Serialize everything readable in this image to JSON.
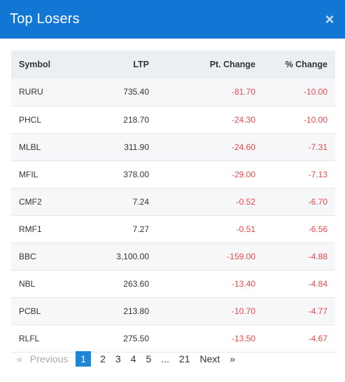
{
  "modal": {
    "title": "Top Losers",
    "close_glyph": "×"
  },
  "table": {
    "headers": [
      "Symbol",
      "LTP",
      "Pt. Change",
      "% Change"
    ],
    "rows": [
      {
        "symbol": "RURU",
        "ltp": "735.40",
        "pt_change": "-81.70",
        "pct_change": "-10.00"
      },
      {
        "symbol": "PHCL",
        "ltp": "218.70",
        "pt_change": "-24.30",
        "pct_change": "-10.00"
      },
      {
        "symbol": "MLBL",
        "ltp": "311.90",
        "pt_change": "-24.60",
        "pct_change": "-7.31"
      },
      {
        "symbol": "MFIL",
        "ltp": "378.00",
        "pt_change": "-29.00",
        "pct_change": "-7.13"
      },
      {
        "symbol": "CMF2",
        "ltp": "7.24",
        "pt_change": "-0.52",
        "pct_change": "-6.70"
      },
      {
        "symbol": "RMF1",
        "ltp": "7.27",
        "pt_change": "-0.51",
        "pct_change": "-6.56"
      },
      {
        "symbol": "BBC",
        "ltp": "3,100.00",
        "pt_change": "-159.00",
        "pct_change": "-4.88"
      },
      {
        "symbol": "NBL",
        "ltp": "263.60",
        "pt_change": "-13.40",
        "pct_change": "-4.84"
      },
      {
        "symbol": "PCBL",
        "ltp": "213.80",
        "pt_change": "-10.70",
        "pct_change": "-4.77"
      },
      {
        "symbol": "RLFL",
        "ltp": "275.50",
        "pt_change": "-13.50",
        "pct_change": "-4.67"
      }
    ]
  },
  "pagination": {
    "prev_arrow": "«",
    "previous_label": "Previous",
    "pages": [
      "1",
      "2",
      "3",
      "4",
      "5",
      "...",
      "21"
    ],
    "active_page": "1",
    "next_label": "Next",
    "next_arrow": "»"
  },
  "colors": {
    "header_bg": "#1277d4",
    "negative": "#e8464a",
    "active_page_bg": "#1e86d6"
  }
}
